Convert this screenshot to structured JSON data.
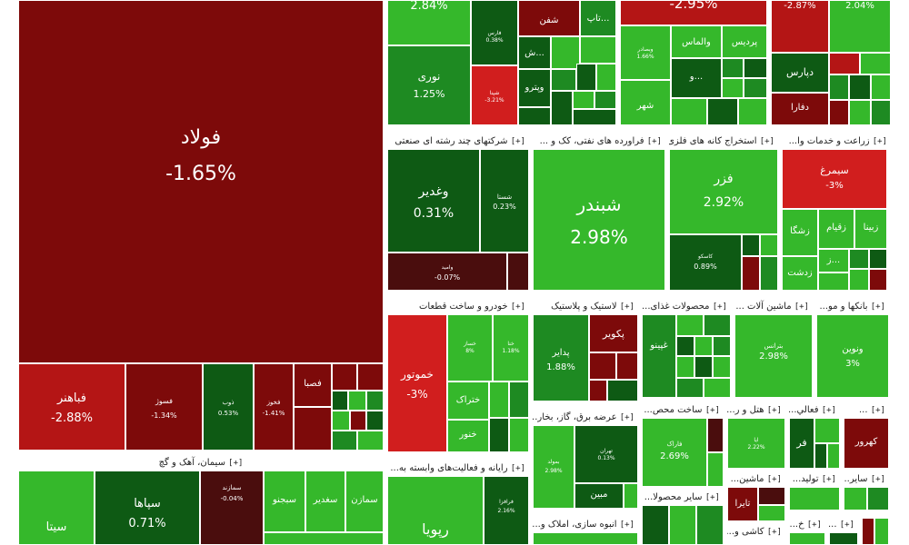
{
  "colors": {
    "dark_red": "#7d0a0a",
    "red": "#d11e1e",
    "dark_green": "#0e5a14",
    "mid_green": "#1e8a22",
    "light_green": "#35b82b"
  },
  "sectors": [
    {
      "key": "steel",
      "title": "",
      "plus": ""
    },
    {
      "key": "cement",
      "title": "سیمان، آهک و گچ",
      "plus": "[+]"
    },
    {
      "key": "conglomerate",
      "title": "شرکتهای چند رشته ای صنعتی",
      "plus": "[+]"
    },
    {
      "key": "oil",
      "title": "فراورده های نفتی، کک و ...",
      "plus": "[+]"
    },
    {
      "key": "mining",
      "title": "استخراج کانه های فلزی",
      "plus": "[+]"
    },
    {
      "key": "agri",
      "title": "زراعت و خدمات وا...",
      "plus": "[+]"
    },
    {
      "key": "auto",
      "title": "خودرو و ساخت قطعات",
      "plus": "[+]"
    },
    {
      "key": "plastic",
      "title": "لاستیک و پلاستیک",
      "plus": "[+]"
    },
    {
      "key": "food",
      "title": "محصولات غذای...",
      "plus": "[+]"
    },
    {
      "key": "machinery",
      "title": "ماشین آلات ...",
      "plus": "[+]"
    },
    {
      "key": "banks",
      "title": "بانکها و مو...",
      "plus": "[+]"
    },
    {
      "key": "electricity",
      "title": "عرضه برق، گاز، بخار...",
      "plus": "[+]"
    },
    {
      "key": "construction",
      "title": "ساخت محص...",
      "plus": "[+]"
    },
    {
      "key": "hotel",
      "title": "هتل و ر...",
      "plus": "[+]"
    },
    {
      "key": "activ",
      "title": "فعالي...",
      "plus": "[+]"
    },
    {
      "key": "other1",
      "title": "...",
      "plus": "[+]"
    },
    {
      "key": "it",
      "title": "رایانه و فعالیت‌های وابسته به...",
      "plus": "[+]"
    },
    {
      "key": "other_products",
      "title": "سایر محصولا...",
      "plus": "[+]"
    },
    {
      "key": "machine2",
      "title": "ماشین...",
      "plus": "[+]"
    },
    {
      "key": "produce",
      "title": "تولید...",
      "plus": "[+]"
    },
    {
      "key": "other2",
      "title": "سایر...",
      "plus": "[+]"
    },
    {
      "key": "realestate",
      "title": "انبوه سازی، املاک و...",
      "plus": "[+]"
    },
    {
      "key": "tile",
      "title": "کاشی و...",
      "plus": "[+]"
    },
    {
      "key": "cc",
      "title": "خ...",
      "plus": "[+]"
    },
    {
      "key": "ff",
      "title": "...",
      "plus": "[+]"
    }
  ],
  "tiles": [
    {
      "name": "foolad",
      "symbol": "فولاد",
      "change": "-1.65%",
      "color": "dark_red"
    },
    {
      "name": "fbahnar",
      "symbol": "فباهنر",
      "change": "-2.88%",
      "color": "red"
    },
    {
      "name": "fsoz",
      "symbol": "فسوژ",
      "change": "-1.34%",
      "color": "dark_red"
    },
    {
      "name": "zob",
      "symbol": "ذوب",
      "change": "0.53%",
      "color": "dark_green"
    },
    {
      "name": "fkhuz",
      "symbol": "فخوز",
      "change": "-1.41%",
      "color": "dark_red"
    },
    {
      "name": "fesba",
      "symbol": "فصبا",
      "change": "",
      "color": "dark_red"
    },
    {
      "name": "sita",
      "symbol": "سیتا",
      "change": "",
      "color": "light_green"
    },
    {
      "name": "sepaha",
      "symbol": "سپاها",
      "change": "0.71%",
      "color": "dark_green"
    },
    {
      "name": "mazand",
      "symbol": "سمازند",
      "change": "-0.04%",
      "color": "dark_red"
    },
    {
      "name": "sbojnu",
      "symbol": "سبجنو",
      "change": "",
      "color": "light_green"
    },
    {
      "name": "sghadir",
      "symbol": "سغدیر",
      "change": "",
      "color": "light_green"
    },
    {
      "name": "samazn",
      "symbol": "سمازن",
      "change": "",
      "color": "light_green"
    },
    {
      "name": "vghadir",
      "symbol": "وغدیر",
      "change": "0.31%",
      "color": "dark_green"
    },
    {
      "name": "shsata",
      "symbol": "شستا",
      "change": "0.23%",
      "color": "dark_green"
    },
    {
      "name": "vamid",
      "symbol": "وامید",
      "change": "-0.07%",
      "color": "dark_red"
    },
    {
      "name": "shabandar",
      "symbol": "شبندر",
      "change": "2.98%",
      "color": "light_green"
    },
    {
      "name": "fezar",
      "symbol": "فزر",
      "change": "2.92%",
      "color": "light_green"
    },
    {
      "name": "kasco",
      "symbol": "کاسکو",
      "change": "0.89%",
      "color": "dark_green"
    },
    {
      "name": "simorgh",
      "symbol": "سیمرغ",
      "change": "-3%",
      "color": "red"
    },
    {
      "name": "zangal",
      "symbol": "زشگا",
      "change": "",
      "color": "light_green"
    },
    {
      "name": "zghiam",
      "symbol": "زقیام",
      "change": "",
      "color": "light_green"
    },
    {
      "name": "zbina",
      "symbol": "زبینا",
      "change": "",
      "color": "light_green"
    },
    {
      "name": "zdasht",
      "symbol": "زدشت",
      "change": "",
      "color": "light_green"
    },
    {
      "name": "zaz",
      "symbol": "ز...",
      "change": "",
      "color": "light_green"
    },
    {
      "name": "khmotor",
      "symbol": "خموتور",
      "change": "-3%",
      "color": "red"
    },
    {
      "name": "khsazar",
      "symbol": "خساز",
      "change": "8%",
      "color": "light_green"
    },
    {
      "name": "khnapa",
      "symbol": "خنا",
      "change": "1.18%",
      "color": "light_green"
    },
    {
      "name": "khteraak",
      "symbol": "ختراک",
      "change": "",
      "color": "light_green"
    },
    {
      "name": "khnur",
      "symbol": "خنور",
      "change": "",
      "color": "light_green"
    },
    {
      "name": "padir",
      "symbol": "پدایر",
      "change": "1.88%",
      "color": "mid_green"
    },
    {
      "name": "pakvir",
      "symbol": "پکویر",
      "change": "",
      "color": "dark_red"
    },
    {
      "name": "ghpino",
      "symbol": "غپینو",
      "change": "",
      "color": "mid_green"
    },
    {
      "name": "beteransh",
      "symbol": "بترانس",
      "change": "2.98%",
      "color": "light_green"
    },
    {
      "name": "vnovin",
      "symbol": "ونوین",
      "change": "3%",
      "color": "light_green"
    },
    {
      "name": "tehran",
      "symbol": "تهران",
      "change": "0.13%",
      "color": "dark_green"
    },
    {
      "name": "bmovaled",
      "symbol": "بمولد",
      "change": "2.98%",
      "color": "light_green"
    },
    {
      "name": "mabin",
      "symbol": "مبین",
      "change": "",
      "color": "dark_green"
    },
    {
      "name": "farak",
      "symbol": "فاراک",
      "change": "2.69%",
      "color": "light_green"
    },
    {
      "name": "aria",
      "symbol": "ایا",
      "change": "2.22%",
      "color": "light_green"
    },
    {
      "name": "ff",
      "symbol": "فر",
      "change": "",
      "color": "dark_green"
    },
    {
      "name": "kahrob",
      "symbol": "کهرور",
      "change": "",
      "color": "dark_red"
    },
    {
      "name": "taira",
      "symbol": "تایرا",
      "change": "",
      "color": "dark_red"
    },
    {
      "name": "rupia",
      "symbol": "رپویا",
      "change": "",
      "color": "light_green"
    },
    {
      "name": "frazza",
      "symbol": "فرافزا",
      "change": "2.16%",
      "color": "dark_green"
    },
    {
      "name": "top1",
      "symbol": "",
      "change": "2.84%",
      "color": "light_green"
    },
    {
      "name": "nouri",
      "symbol": "نوری",
      "change": "1.25%",
      "color": "mid_green"
    },
    {
      "name": "fars",
      "symbol": "فارس",
      "change": "0.38%",
      "color": "dark_green"
    },
    {
      "name": "shefn",
      "symbol": "شفن",
      "change": "",
      "color": "dark_red"
    },
    {
      "name": "tab",
      "symbol": "تاپ...",
      "change": "",
      "color": "mid_green"
    },
    {
      "name": "shb",
      "symbol": "ش...",
      "change": "",
      "color": "dark_green"
    },
    {
      "name": "shpna",
      "symbol": "شپنا",
      "change": "-3.21%",
      "color": "red"
    },
    {
      "name": "vpetro",
      "symbol": "وپترو",
      "change": "",
      "color": "dark_green"
    },
    {
      "name": "top2",
      "symbol": "",
      "change": "-2.95%",
      "color": "red"
    },
    {
      "name": "vsadra",
      "symbol": "وبصادر",
      "change": "1.66%",
      "color": "light_green"
    },
    {
      "name": "valmas",
      "symbol": "والماس",
      "change": "",
      "color": "light_green"
    },
    {
      "name": "pardis",
      "symbol": "پردیس",
      "change": "",
      "color": "light_green"
    },
    {
      "name": "vo",
      "symbol": "و...",
      "change": "",
      "color": "dark_green"
    },
    {
      "name": "shahr",
      "symbol": "شهر",
      "change": "",
      "color": "light_green"
    },
    {
      "name": "top3",
      "symbol": "",
      "change": "-2.87%",
      "color": "red"
    },
    {
      "name": "top4",
      "symbol": "",
      "change": "2.04%",
      "color": "light_green"
    },
    {
      "name": "dpars",
      "symbol": "دپارس",
      "change": "",
      "color": "dark_green"
    },
    {
      "name": "dfara",
      "symbol": "دفارا",
      "change": "",
      "color": "dark_red"
    }
  ]
}
